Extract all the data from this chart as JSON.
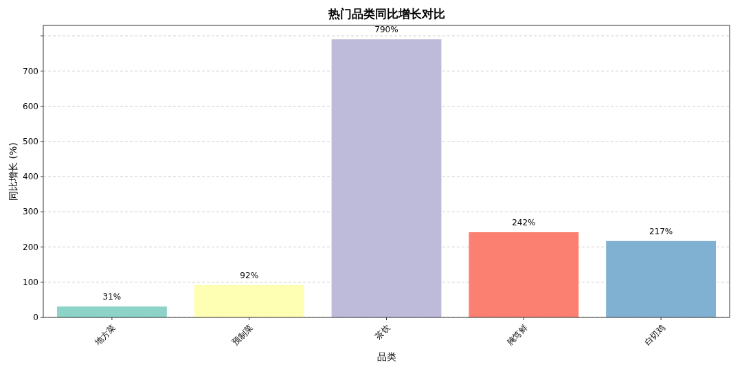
{
  "chart_data": {
    "type": "bar",
    "title": "热门品类同比增长对比",
    "xlabel": "品类",
    "ylabel": "同比增长 (%)",
    "categories": [
      "地方菜",
      "预制菜",
      "茶饮",
      "腌笃鲜",
      "白切鸡"
    ],
    "values": [
      31,
      92,
      790,
      242,
      217
    ],
    "colors": [
      "#8dd3c7",
      "#ffffb3",
      "#bebada",
      "#fb8072",
      "#80b1d3"
    ],
    "value_labels": [
      "31%",
      "92%",
      "790%",
      "242%",
      "217%"
    ],
    "ylim": [
      0,
      829.5
    ],
    "yticks": [
      0,
      100,
      200,
      300,
      400,
      500,
      600,
      700,
      {
        "value": 800,
        "label": null
      }
    ],
    "grid": "y"
  }
}
